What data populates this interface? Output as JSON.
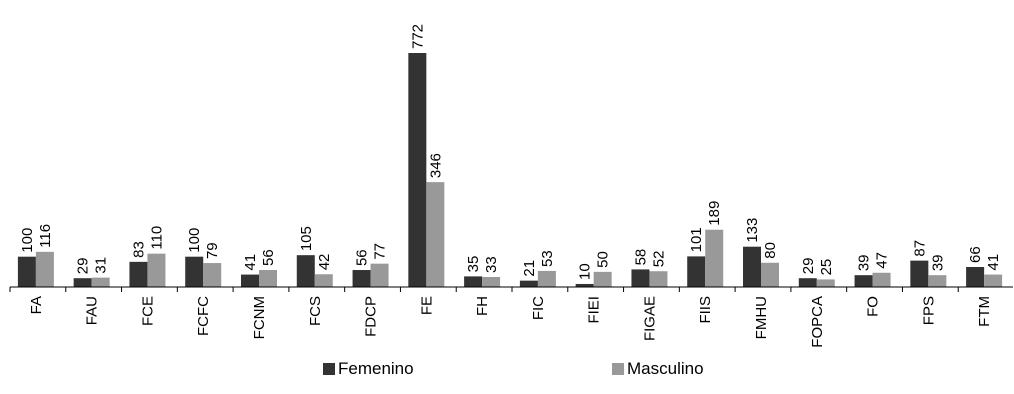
{
  "chart_data": {
    "type": "bar",
    "title": "",
    "xlabel": "",
    "ylabel": "",
    "ylim": [
      0,
      780
    ],
    "grid": false,
    "legend_position": "bottom",
    "categories": [
      "FA",
      "FAU",
      "FCE",
      "FCFC",
      "FCNM",
      "FCS",
      "FDCP",
      "FE",
      "FH",
      "FIC",
      "FIEI",
      "FIGAE",
      "FIIS",
      "FMHU",
      "FOPCA",
      "FO",
      "FPS",
      "FTM"
    ],
    "series": [
      {
        "name": "Femenino",
        "color": "#333333",
        "values": [
          100,
          29,
          83,
          100,
          41,
          105,
          56,
          772,
          35,
          21,
          10,
          58,
          101,
          133,
          29,
          39,
          87,
          66
        ]
      },
      {
        "name": "Masculino",
        "color": "#999999",
        "values": [
          116,
          31,
          110,
          79,
          56,
          42,
          77,
          346,
          33,
          53,
          50,
          52,
          189,
          80,
          25,
          47,
          39,
          41
        ]
      }
    ]
  }
}
